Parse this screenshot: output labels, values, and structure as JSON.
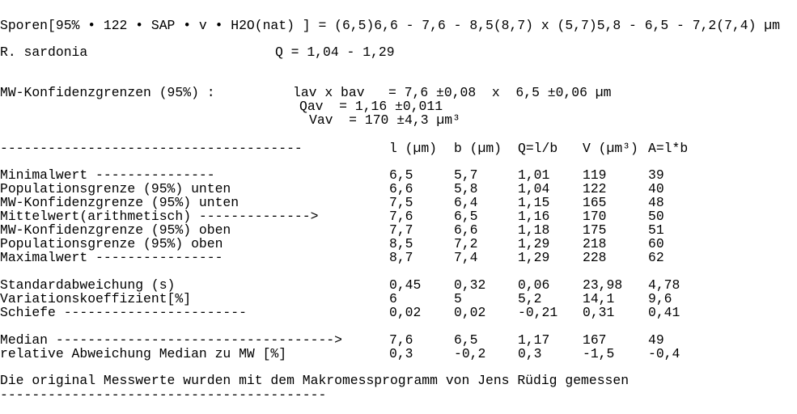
{
  "header": {
    "spore_line": "Sporen[95% • 122 • SAP • v • H2O(nat) ] = (6,5)6,6 - 7,6 - 8,5(8,7) x (5,7)5,8 - 6,5 - 7,2(7,4) µm",
    "species": "R. sardonia",
    "q_range": "Q = 1,04 - 1,29"
  },
  "confidence": {
    "label": "MW-Konfidenzgrenzen (95%) :",
    "lav_bav": "lav x bav   = 7,6 ±0,08  x  6,5 ±0,06 µm",
    "qav": "Qav  = 1,16 ±0,011",
    "vav": "Vav  = 170 ±4,3 µm³"
  },
  "table": {
    "separator": "--------------------------------------",
    "columns": [
      "l (µm)",
      "b (µm)",
      "Q=l/b",
      "V (µm³)",
      "A=l*b"
    ],
    "rows": [
      {
        "label": "Minimalwert ---------------",
        "values": [
          "6,5",
          "5,7",
          "1,01",
          "119",
          "39"
        ]
      },
      {
        "label": "Populationsgrenze (95%) unten",
        "values": [
          "6,6",
          "5,8",
          "1,04",
          "122",
          "40"
        ]
      },
      {
        "label": "MW-Konfidenzgrenze (95%) unten",
        "values": [
          "7,5",
          "6,4",
          "1,15",
          "165",
          "48"
        ]
      },
      {
        "label": "Mittelwert(arithmetisch) -------------->",
        "values": [
          "7,6",
          "6,5",
          "1,16",
          "170",
          "50"
        ]
      },
      {
        "label": "MW-Konfidenzgrenze (95%) oben",
        "values": [
          "7,7",
          "6,6",
          "1,18",
          "175",
          "51"
        ]
      },
      {
        "label": "Populationsgrenze (95%) oben",
        "values": [
          "8,5",
          "7,2",
          "1,29",
          "218",
          "60"
        ]
      },
      {
        "label": "Maximalwert ----------------",
        "values": [
          "8,7",
          "7,4",
          "1,29",
          "228",
          "62"
        ]
      },
      {
        "label": "Standardabweichung (s)",
        "values": [
          "0,45",
          "0,32",
          "0,06",
          "23,98",
          "4,78"
        ]
      },
      {
        "label": "Variationskoeffizient[%]",
        "values": [
          "6",
          "5",
          "5,2",
          "14,1",
          "9,6"
        ]
      },
      {
        "label": "Schiefe -----------------------",
        "values": [
          "0,02",
          "0,02",
          "-0,21",
          "0,31",
          "0,41"
        ]
      },
      {
        "label": "Median ----------------------------------->",
        "values": [
          "7,6",
          "6,5",
          "1,17",
          "167",
          "49"
        ]
      },
      {
        "label": "relative Abweichung Median zu MW [%]",
        "values": [
          "0,3",
          "-0,2",
          "0,3",
          "-1,5",
          "-0,4"
        ]
      }
    ]
  },
  "footer": {
    "note": "Die original Messwerte wurden mit dem Makromessprogramm von Jens Rüdig gemessen",
    "separator": "-----------------------------------------"
  }
}
